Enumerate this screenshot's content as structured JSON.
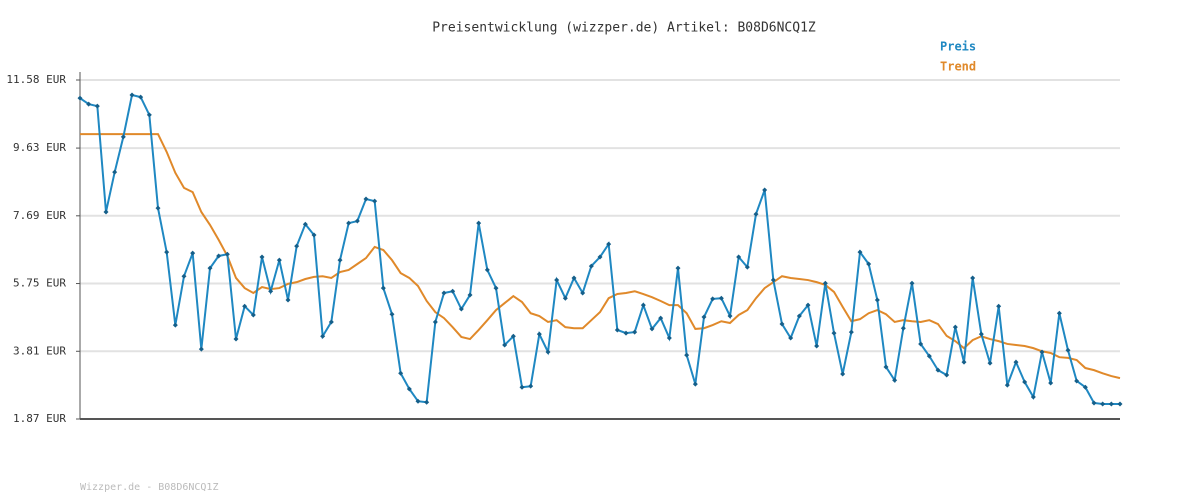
{
  "chart_data": {
    "type": "line",
    "title": "Preisentwicklung (wizzper.de) Artikel: B08D6NCQ1Z",
    "categories": [
      null,
      null,
      null,
      null,
      null,
      null,
      null,
      null,
      null,
      null,
      null,
      null,
      null,
      null,
      null,
      null,
      null,
      null,
      null,
      null,
      null,
      null,
      null,
      null,
      null,
      null,
      null,
      null,
      null,
      null,
      null,
      null,
      null,
      null,
      null,
      null,
      null,
      null,
      null,
      null,
      null,
      null,
      null,
      null,
      null,
      null,
      null,
      null,
      null,
      null,
      null,
      null,
      null,
      null,
      null,
      null,
      null,
      null,
      null,
      null,
      null,
      null,
      null,
      null,
      null,
      null,
      null,
      null,
      null,
      null,
      null,
      null,
      null,
      null,
      null,
      null,
      null,
      null,
      null,
      null,
      null,
      null,
      null,
      null,
      null,
      null,
      null,
      null,
      null,
      null,
      null,
      null,
      null,
      null,
      null,
      null,
      null,
      null,
      null,
      null,
      null,
      null,
      null,
      null,
      null,
      null,
      null,
      null,
      null,
      null,
      null,
      null,
      null,
      null,
      null,
      null,
      null,
      null,
      null,
      null,
      null
    ],
    "series": [
      {
        "name": "Preis",
        "color": "#1f88c2",
        "markers": true,
        "values": [
          11.06,
          10.89,
          10.83,
          7.8,
          8.94,
          9.95,
          11.15,
          11.09,
          10.58,
          7.91,
          6.65,
          4.56,
          5.96,
          6.62,
          3.87,
          6.19,
          6.54,
          6.59,
          4.16,
          5.1,
          4.85,
          6.51,
          5.53,
          6.42,
          5.28,
          6.82,
          7.45,
          7.14,
          4.24,
          4.65,
          6.42,
          7.48,
          7.54,
          8.17,
          8.11,
          5.62,
          4.87,
          3.18,
          2.73,
          2.38,
          2.35,
          4.65,
          5.48,
          5.53,
          5.02,
          5.42,
          7.48,
          6.14,
          5.62,
          3.99,
          4.24,
          2.78,
          2.81,
          4.3,
          3.79,
          5.85,
          5.33,
          5.91,
          5.48,
          6.25,
          6.51,
          6.88,
          4.42,
          4.33,
          4.36,
          5.13,
          4.45,
          4.76,
          4.19,
          6.19,
          3.7,
          2.87,
          4.79,
          5.31,
          5.33,
          4.82,
          6.51,
          6.22,
          7.74,
          8.43,
          5.85,
          4.59,
          4.19,
          4.82,
          5.13,
          3.96,
          5.76,
          4.33,
          3.16,
          4.36,
          6.65,
          6.31,
          5.28,
          3.36,
          2.98,
          4.47,
          5.76,
          4.02,
          3.67,
          3.27,
          3.13,
          4.5,
          3.5,
          5.91,
          4.3,
          3.47,
          5.1,
          2.84,
          3.5,
          2.93,
          2.5,
          3.79,
          2.9,
          4.9,
          3.84,
          2.96,
          2.78,
          2.33,
          2.3,
          2.3,
          2.3
        ]
      },
      {
        "name": "Trend",
        "color": "#e0892a",
        "markers": false,
        "values": [
          10.03,
          10.03,
          10.03,
          10.03,
          10.03,
          10.03,
          10.03,
          10.03,
          10.03,
          10.03,
          9.52,
          8.92,
          8.49,
          8.37,
          7.8,
          7.43,
          7.0,
          6.54,
          5.91,
          5.62,
          5.48,
          5.65,
          5.59,
          5.62,
          5.74,
          5.79,
          5.88,
          5.94,
          5.96,
          5.91,
          6.08,
          6.14,
          6.31,
          6.48,
          6.8,
          6.71,
          6.42,
          6.05,
          5.91,
          5.68,
          5.25,
          4.93,
          4.76,
          4.5,
          4.22,
          4.16,
          4.42,
          4.7,
          4.99,
          5.19,
          5.39,
          5.22,
          4.9,
          4.82,
          4.65,
          4.7,
          4.5,
          4.47,
          4.47,
          4.7,
          4.93,
          5.33,
          5.45,
          5.48,
          5.53,
          5.45,
          5.36,
          5.25,
          5.13,
          5.13,
          4.9,
          4.45,
          4.47,
          4.56,
          4.67,
          4.62,
          4.85,
          4.99,
          5.33,
          5.62,
          5.79,
          5.96,
          5.91,
          5.88,
          5.85,
          5.79,
          5.71,
          5.51,
          5.08,
          4.67,
          4.73,
          4.9,
          4.99,
          4.87,
          4.65,
          4.7,
          4.67,
          4.65,
          4.7,
          4.59,
          4.25,
          4.1,
          3.9,
          4.13,
          4.24,
          4.16,
          4.1,
          4.02,
          3.99,
          3.96,
          3.9,
          3.81,
          3.76,
          3.64,
          3.62,
          3.56,
          3.33,
          3.27,
          3.18,
          3.1,
          3.04
        ]
      }
    ],
    "ylim": [
      1.87,
      11.58
    ],
    "yticks": [
      {
        "value": 1.87,
        "label": "1.87 EUR"
      },
      {
        "value": 3.81,
        "label": "3.81 EUR"
      },
      {
        "value": 5.75,
        "label": "5.75 EUR"
      },
      {
        "value": 7.69,
        "label": "7.69 EUR"
      },
      {
        "value": 9.63,
        "label": "9.63 EUR"
      },
      {
        "value": 11.58,
        "label": "11.58 EUR"
      }
    ],
    "grid": true,
    "legend": "top-right"
  },
  "footer": "Wizzper.de - B08D6NCQ1Z"
}
